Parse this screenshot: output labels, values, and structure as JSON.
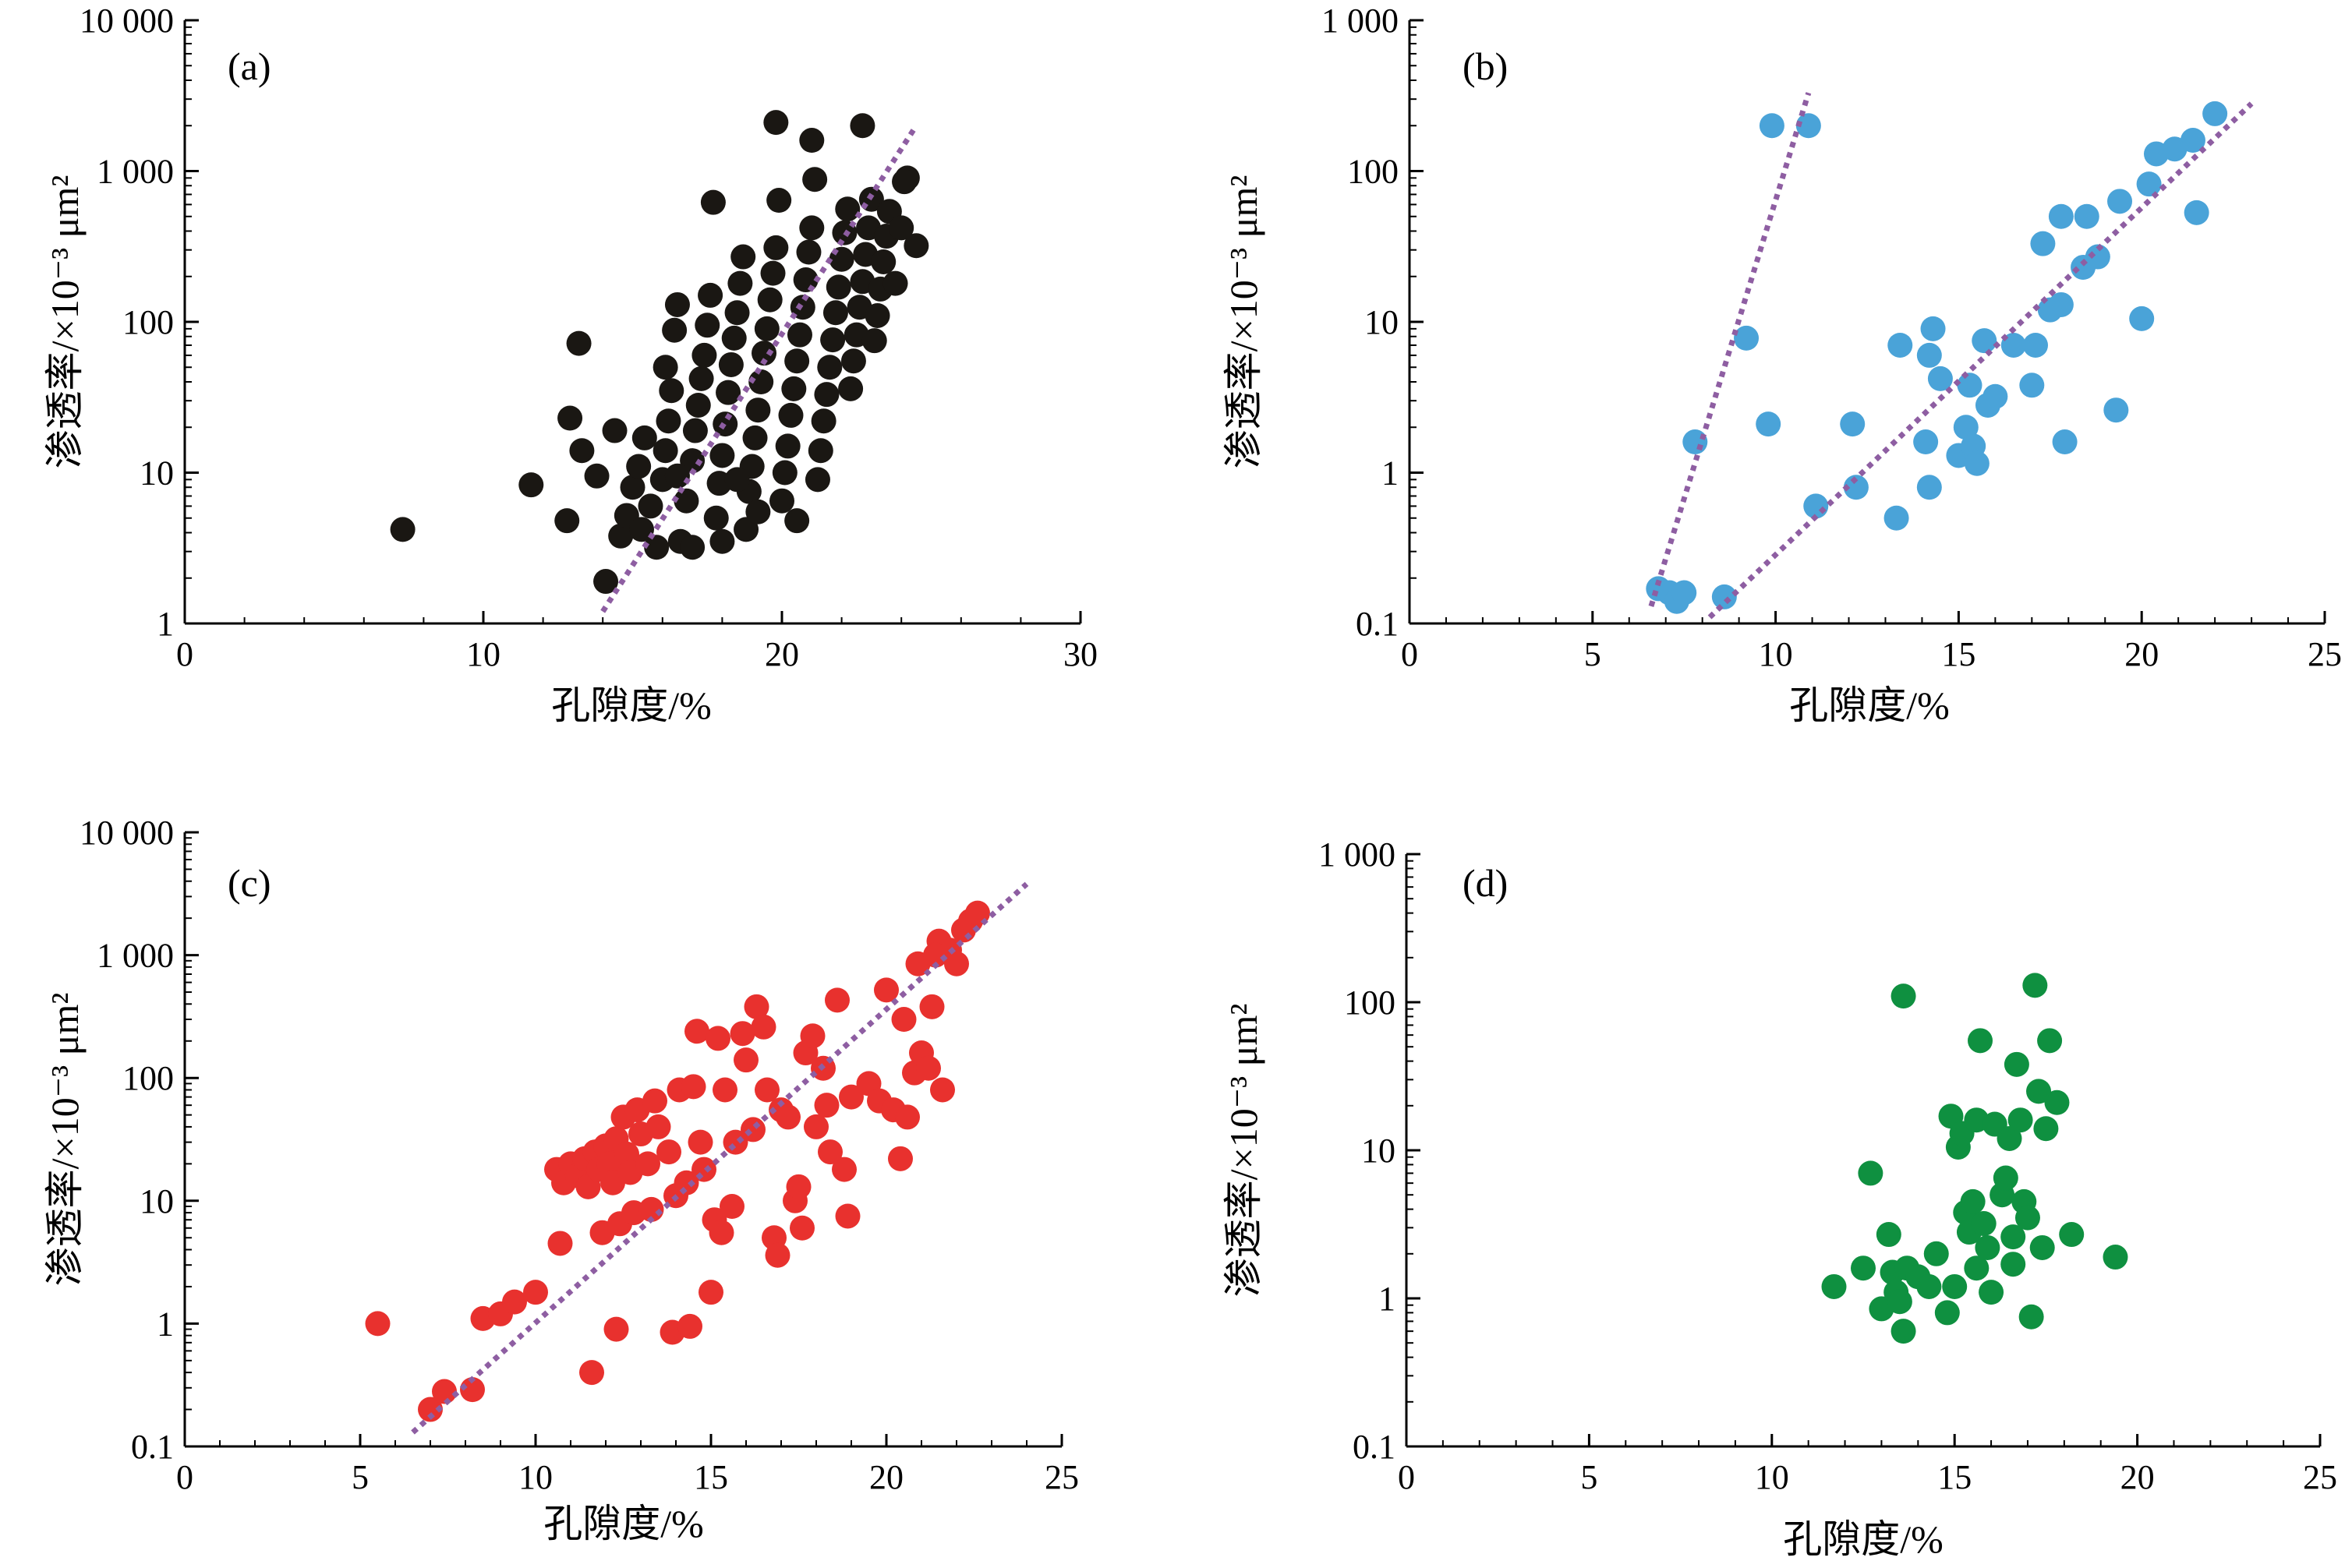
{
  "chart_data": [
    {
      "panel": "(a)",
      "type": "scatter",
      "xlabel": "孔隙度/%",
      "ylabel": "渗透率/×10⁻³ μm²",
      "xlim": [
        0,
        30
      ],
      "ylim": [
        1,
        10000
      ],
      "yscale": "log",
      "xticks": [
        "0",
        "10",
        "20",
        "30"
      ],
      "yticks": [
        "1",
        "10",
        "100",
        "1 000",
        "10 000"
      ],
      "marker_color": "#1a1713",
      "trend_color": "#8e5ea2",
      "trend_line": [
        [
          14,
          1.2
        ],
        [
          24.5,
          2000
        ]
      ],
      "points": [
        [
          7.3,
          4.2
        ],
        [
          11.6,
          8.3
        ],
        [
          12.8,
          4.8
        ],
        [
          12.9,
          23
        ],
        [
          13.3,
          14
        ],
        [
          13.2,
          72
        ],
        [
          13.8,
          9.5
        ],
        [
          14.1,
          1.9
        ],
        [
          14.4,
          19
        ],
        [
          14.6,
          3.8
        ],
        [
          14.8,
          5.2
        ],
        [
          15.0,
          8
        ],
        [
          15.2,
          11
        ],
        [
          15.4,
          17
        ],
        [
          15.3,
          4.2
        ],
        [
          15.6,
          6
        ],
        [
          15.8,
          3.2
        ],
        [
          16.0,
          9
        ],
        [
          16.1,
          14
        ],
        [
          16.2,
          22
        ],
        [
          16.3,
          35
        ],
        [
          16.1,
          50
        ],
        [
          16.4,
          88
        ],
        [
          16.5,
          130
        ],
        [
          16.6,
          3.5
        ],
        [
          16.8,
          6.5
        ],
        [
          17.0,
          12
        ],
        [
          17.1,
          19
        ],
        [
          17.2,
          28
        ],
        [
          17.3,
          42
        ],
        [
          17.4,
          60
        ],
        [
          17.5,
          95
        ],
        [
          17.6,
          150
        ],
        [
          17.7,
          620
        ],
        [
          17.8,
          5
        ],
        [
          17.9,
          8.5
        ],
        [
          18.0,
          13
        ],
        [
          18.1,
          21
        ],
        [
          18.2,
          34
        ],
        [
          18.3,
          52
        ],
        [
          18.4,
          78
        ],
        [
          18.5,
          115
        ],
        [
          18.6,
          180
        ],
        [
          18.7,
          270
        ],
        [
          18.8,
          4.2
        ],
        [
          18.9,
          7.5
        ],
        [
          19.0,
          11
        ],
        [
          19.1,
          17
        ],
        [
          19.2,
          26
        ],
        [
          19.3,
          40
        ],
        [
          19.4,
          62
        ],
        [
          19.5,
          90
        ],
        [
          19.6,
          140
        ],
        [
          19.7,
          210
        ],
        [
          19.8,
          310
        ],
        [
          19.9,
          640
        ],
        [
          19.8,
          2100
        ],
        [
          20.0,
          6.5
        ],
        [
          20.1,
          10
        ],
        [
          20.2,
          15
        ],
        [
          20.3,
          24
        ],
        [
          20.4,
          36
        ],
        [
          20.5,
          55
        ],
        [
          20.6,
          82
        ],
        [
          20.7,
          125
        ],
        [
          20.8,
          190
        ],
        [
          20.9,
          290
        ],
        [
          21.0,
          420
        ],
        [
          21.1,
          880
        ],
        [
          21.2,
          9
        ],
        [
          21.3,
          14
        ],
        [
          21.4,
          22
        ],
        [
          21.5,
          33
        ],
        [
          21.6,
          50
        ],
        [
          21.7,
          76
        ],
        [
          21.8,
          115
        ],
        [
          21.9,
          170
        ],
        [
          22.0,
          260
        ],
        [
          22.1,
          390
        ],
        [
          22.2,
          560
        ],
        [
          22.3,
          36
        ],
        [
          22.4,
          55
        ],
        [
          22.5,
          82
        ],
        [
          22.6,
          125
        ],
        [
          22.7,
          185
        ],
        [
          22.8,
          280
        ],
        [
          22.9,
          420
        ],
        [
          22.7,
          2000
        ],
        [
          23.0,
          650
        ],
        [
          23.1,
          75
        ],
        [
          23.2,
          110
        ],
        [
          23.3,
          165
        ],
        [
          23.4,
          250
        ],
        [
          23.5,
          370
        ],
        [
          23.6,
          540
        ],
        [
          23.8,
          180
        ],
        [
          24.0,
          420
        ],
        [
          24.2,
          900
        ],
        [
          24.5,
          320
        ],
        [
          24.1,
          850
        ],
        [
          21.0,
          1600
        ],
        [
          19.2,
          5.5
        ],
        [
          18.0,
          3.5
        ],
        [
          17.0,
          3.2
        ],
        [
          16.5,
          9.5
        ],
        [
          18.5,
          9
        ],
        [
          20.5,
          4.8
        ]
      ]
    },
    {
      "panel": "(b)",
      "type": "scatter",
      "xlabel": "孔隙度/%",
      "ylabel": "渗透率/×10⁻³ μm²",
      "xlim": [
        0,
        25
      ],
      "ylim": [
        0.1,
        1000
      ],
      "yscale": "log",
      "xticks": [
        "0",
        "5",
        "10",
        "15",
        "20",
        "25"
      ],
      "yticks": [
        "0.1",
        "1",
        "10",
        "100",
        "1 000"
      ],
      "marker_color": "#4aa3d8",
      "trend_color": "#8e5ea2",
      "trend_lines": [
        [
          [
            6.6,
            0.13
          ],
          [
            10.9,
            330
          ]
        ],
        [
          [
            8.2,
            0.11
          ],
          [
            23,
            280
          ]
        ]
      ],
      "points": [
        [
          6.8,
          0.17
        ],
        [
          7.1,
          0.16
        ],
        [
          7.3,
          0.14
        ],
        [
          7.5,
          0.16
        ],
        [
          7.8,
          1.6
        ],
        [
          8.6,
          0.15
        ],
        [
          9.2,
          7.8
        ],
        [
          9.8,
          2.1
        ],
        [
          9.9,
          200
        ],
        [
          10.9,
          200
        ],
        [
          11.1,
          0.6
        ],
        [
          12.1,
          2.1
        ],
        [
          12.2,
          0.8
        ],
        [
          13.3,
          0.5
        ],
        [
          13.4,
          7
        ],
        [
          14.1,
          1.6
        ],
        [
          14.2,
          0.8
        ],
        [
          14.2,
          6
        ],
        [
          14.3,
          9
        ],
        [
          14.5,
          4.2
        ],
        [
          15.0,
          1.3
        ],
        [
          15.2,
          2
        ],
        [
          15.3,
          3.8
        ],
        [
          15.4,
          1.5
        ],
        [
          15.5,
          1.15
        ],
        [
          15.7,
          7.5
        ],
        [
          15.8,
          2.8
        ],
        [
          16.0,
          3.2
        ],
        [
          16.5,
          7
        ],
        [
          17.0,
          3.8
        ],
        [
          17.1,
          7
        ],
        [
          17.3,
          33
        ],
        [
          17.5,
          12
        ],
        [
          17.8,
          13
        ],
        [
          17.8,
          50
        ],
        [
          17.9,
          1.6
        ],
        [
          18.4,
          23
        ],
        [
          18.5,
          50
        ],
        [
          18.8,
          27
        ],
        [
          19.3,
          2.6
        ],
        [
          19.4,
          63
        ],
        [
          20.0,
          10.5
        ],
        [
          20.2,
          82
        ],
        [
          20.4,
          130
        ],
        [
          20.9,
          140
        ],
        [
          21.4,
          160
        ],
        [
          21.5,
          53
        ],
        [
          22.0,
          240
        ]
      ]
    },
    {
      "panel": "(c)",
      "type": "scatter",
      "xlabel": "孔隙度/%",
      "ylabel": "渗透率/×10⁻³ μm²",
      "xlim": [
        0,
        25
      ],
      "ylim": [
        0.1,
        10000
      ],
      "yscale": "log",
      "xticks": [
        "0",
        "5",
        "10",
        "15",
        "20",
        "25"
      ],
      "yticks": [
        "0.1",
        "1",
        "10",
        "100",
        "1 000",
        "10 000"
      ],
      "marker_color": "#e8312e",
      "trend_color": "#8e5ea2",
      "trend_line": [
        [
          6.5,
          0.13
        ],
        [
          24,
          3800
        ]
      ],
      "points": [
        [
          5.5,
          1
        ],
        [
          7.0,
          0.2
        ],
        [
          7.4,
          0.28
        ],
        [
          8.2,
          0.29
        ],
        [
          8.5,
          1.1
        ],
        [
          9.0,
          1.2
        ],
        [
          9.4,
          1.5
        ],
        [
          10.0,
          1.8
        ],
        [
          10.6,
          18
        ],
        [
          10.7,
          4.5
        ],
        [
          10.8,
          14
        ],
        [
          11.0,
          20
        ],
        [
          11.2,
          16
        ],
        [
          11.4,
          22
        ],
        [
          11.5,
          13
        ],
        [
          11.6,
          0.4
        ],
        [
          11.7,
          25
        ],
        [
          11.8,
          18
        ],
        [
          11.9,
          5.5
        ],
        [
          12.0,
          28
        ],
        [
          12.1,
          20
        ],
        [
          12.2,
          14
        ],
        [
          12.3,
          0.9
        ],
        [
          12.3,
          32
        ],
        [
          12.4,
          6.5
        ],
        [
          12.5,
          48
        ],
        [
          12.6,
          24
        ],
        [
          12.7,
          17
        ],
        [
          12.8,
          8
        ],
        [
          12.9,
          55
        ],
        [
          13.0,
          35
        ],
        [
          13.2,
          20
        ],
        [
          13.3,
          8.5
        ],
        [
          13.4,
          65
        ],
        [
          13.5,
          40
        ],
        [
          13.8,
          25
        ],
        [
          13.9,
          0.85
        ],
        [
          14.0,
          11
        ],
        [
          14.1,
          80
        ],
        [
          14.3,
          14
        ],
        [
          14.4,
          0.95
        ],
        [
          14.5,
          85
        ],
        [
          14.6,
          240
        ],
        [
          14.7,
          30
        ],
        [
          14.8,
          18
        ],
        [
          15.0,
          1.8
        ],
        [
          15.1,
          7
        ],
        [
          15.2,
          210
        ],
        [
          15.3,
          5.5
        ],
        [
          15.4,
          80
        ],
        [
          15.6,
          9
        ],
        [
          15.7,
          30
        ],
        [
          15.9,
          230
        ],
        [
          16.0,
          140
        ],
        [
          16.2,
          38
        ],
        [
          16.3,
          380
        ],
        [
          16.5,
          260
        ],
        [
          16.6,
          80
        ],
        [
          16.8,
          5
        ],
        [
          16.9,
          3.6
        ],
        [
          17.0,
          55
        ],
        [
          17.2,
          48
        ],
        [
          17.4,
          10
        ],
        [
          17.5,
          13
        ],
        [
          17.6,
          6
        ],
        [
          17.7,
          160
        ],
        [
          17.9,
          220
        ],
        [
          18.0,
          40
        ],
        [
          18.2,
          120
        ],
        [
          18.3,
          60
        ],
        [
          18.4,
          25
        ],
        [
          18.6,
          430
        ],
        [
          18.8,
          18
        ],
        [
          18.9,
          7.5
        ],
        [
          19.0,
          70
        ],
        [
          19.5,
          90
        ],
        [
          19.8,
          65
        ],
        [
          20.0,
          520
        ],
        [
          20.2,
          55
        ],
        [
          20.4,
          22
        ],
        [
          20.5,
          300
        ],
        [
          20.6,
          48
        ],
        [
          20.8,
          110
        ],
        [
          20.9,
          850
        ],
        [
          21.0,
          160
        ],
        [
          21.2,
          120
        ],
        [
          21.3,
          380
        ],
        [
          21.5,
          1300
        ],
        [
          21.6,
          80
        ],
        [
          21.8,
          1100
        ],
        [
          22.0,
          850
        ],
        [
          22.2,
          1600
        ],
        [
          22.4,
          1900
        ],
        [
          22.6,
          2200
        ],
        [
          21.4,
          1000
        ]
      ]
    },
    {
      "panel": "(d)",
      "type": "scatter",
      "xlabel": "孔隙度/%",
      "ylabel": "渗透率/×10⁻³ μm²",
      "xlim": [
        0,
        25
      ],
      "ylim": [
        0.1,
        1000
      ],
      "yscale": "log",
      "xticks": [
        "0",
        "5",
        "10",
        "15",
        "20",
        "25"
      ],
      "yticks": [
        "0.1",
        "1",
        "10",
        "100",
        "1 000"
      ],
      "marker_color": "#0f9040",
      "points": [
        [
          11.7,
          1.2
        ],
        [
          12.5,
          1.6
        ],
        [
          12.7,
          7
        ],
        [
          13.0,
          0.85
        ],
        [
          13.2,
          2.7
        ],
        [
          13.3,
          1.5
        ],
        [
          13.4,
          1.1
        ],
        [
          13.5,
          0.95
        ],
        [
          13.6,
          0.6
        ],
        [
          13.7,
          1.6
        ],
        [
          13.6,
          110
        ],
        [
          14.0,
          1.4
        ],
        [
          14.3,
          1.2
        ],
        [
          14.5,
          2
        ],
        [
          14.8,
          0.8
        ],
        [
          14.9,
          17
        ],
        [
          15.0,
          1.2
        ],
        [
          15.1,
          10.5
        ],
        [
          15.2,
          13
        ],
        [
          15.3,
          3.8
        ],
        [
          15.4,
          2.8
        ],
        [
          15.5,
          4.5
        ],
        [
          15.6,
          1.6
        ],
        [
          15.6,
          16
        ],
        [
          15.7,
          55
        ],
        [
          15.8,
          3.2
        ],
        [
          15.9,
          2.2
        ],
        [
          16.0,
          1.1
        ],
        [
          16.1,
          15
        ],
        [
          16.3,
          5
        ],
        [
          16.4,
          6.5
        ],
        [
          16.5,
          12
        ],
        [
          16.6,
          2.6
        ],
        [
          16.6,
          1.7
        ],
        [
          16.7,
          38
        ],
        [
          16.8,
          16
        ],
        [
          16.9,
          4.5
        ],
        [
          17.0,
          3.5
        ],
        [
          17.1,
          0.75
        ],
        [
          17.2,
          130
        ],
        [
          17.3,
          25
        ],
        [
          17.4,
          2.2
        ],
        [
          17.5,
          14
        ],
        [
          17.6,
          55
        ],
        [
          17.8,
          21
        ],
        [
          18.2,
          2.7
        ],
        [
          19.4,
          1.9
        ]
      ]
    }
  ]
}
